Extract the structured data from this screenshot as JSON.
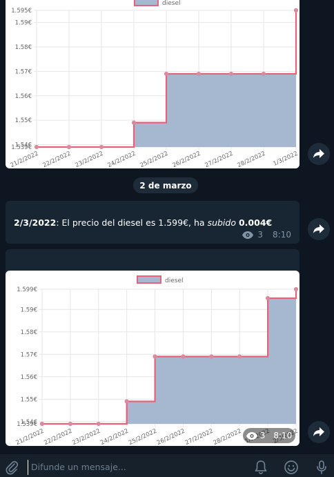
{
  "date_separator": "2 de marzo",
  "message": {
    "date_bold": "2/3/2022",
    "text_1": ": El precio del diesel es 1.599€, ha ",
    "text_italic": "subido",
    "text_2": " ",
    "value_bold": "0.004€",
    "views": "3",
    "time": "8:10"
  },
  "photo_meta": {
    "views": "3",
    "time": "8:10"
  },
  "composer": {
    "placeholder": "Difunde un mensaje..."
  },
  "icons": [
    "share-icon",
    "eye-icon",
    "paperclip-icon",
    "bell-icon",
    "emoji-icon",
    "microphone-icon"
  ],
  "colors": {
    "background": "#0e1621",
    "bubble": "#182533",
    "series_line": "#e8607a",
    "series_fill": "#a5b8cf"
  },
  "chart_data": [
    {
      "type": "area",
      "legend": "diesel",
      "legend_position": "top",
      "x": [
        "21/2/2022",
        "22/2/2022",
        "23/2/2022",
        "24/2/2022",
        "25/2/2022",
        "26/2/2022",
        "27/2/2022",
        "28/2/2022",
        "1/3/2022"
      ],
      "values": [
        1.539,
        1.539,
        1.539,
        1.549,
        1.569,
        1.569,
        1.569,
        1.569,
        1.595
      ],
      "step": true,
      "y_ticks": [
        "1.595€",
        "1.59€",
        "1.58€",
        "1.57€",
        "1.56€",
        "1.55€",
        "1.54€",
        "1.539€"
      ],
      "ylim": [
        1.539,
        1.595
      ],
      "grid": true
    },
    {
      "type": "area",
      "legend": "diesel",
      "legend_position": "top",
      "x": [
        "21/2/2022",
        "22/2/2022",
        "23/2/2022",
        "24/2/2022",
        "25/2/2022",
        "26/2/2022",
        "27/2/2022",
        "28/2/2022",
        "1/3/2022",
        "2/3/2022"
      ],
      "values": [
        1.539,
        1.539,
        1.539,
        1.549,
        1.569,
        1.569,
        1.569,
        1.569,
        1.595,
        1.599
      ],
      "step": true,
      "y_ticks": [
        "1.599€",
        "1.59€",
        "1.58€",
        "1.57€",
        "1.56€",
        "1.55€",
        "1.54€",
        "1.539€"
      ],
      "ylim": [
        1.539,
        1.599
      ],
      "grid": true
    }
  ]
}
